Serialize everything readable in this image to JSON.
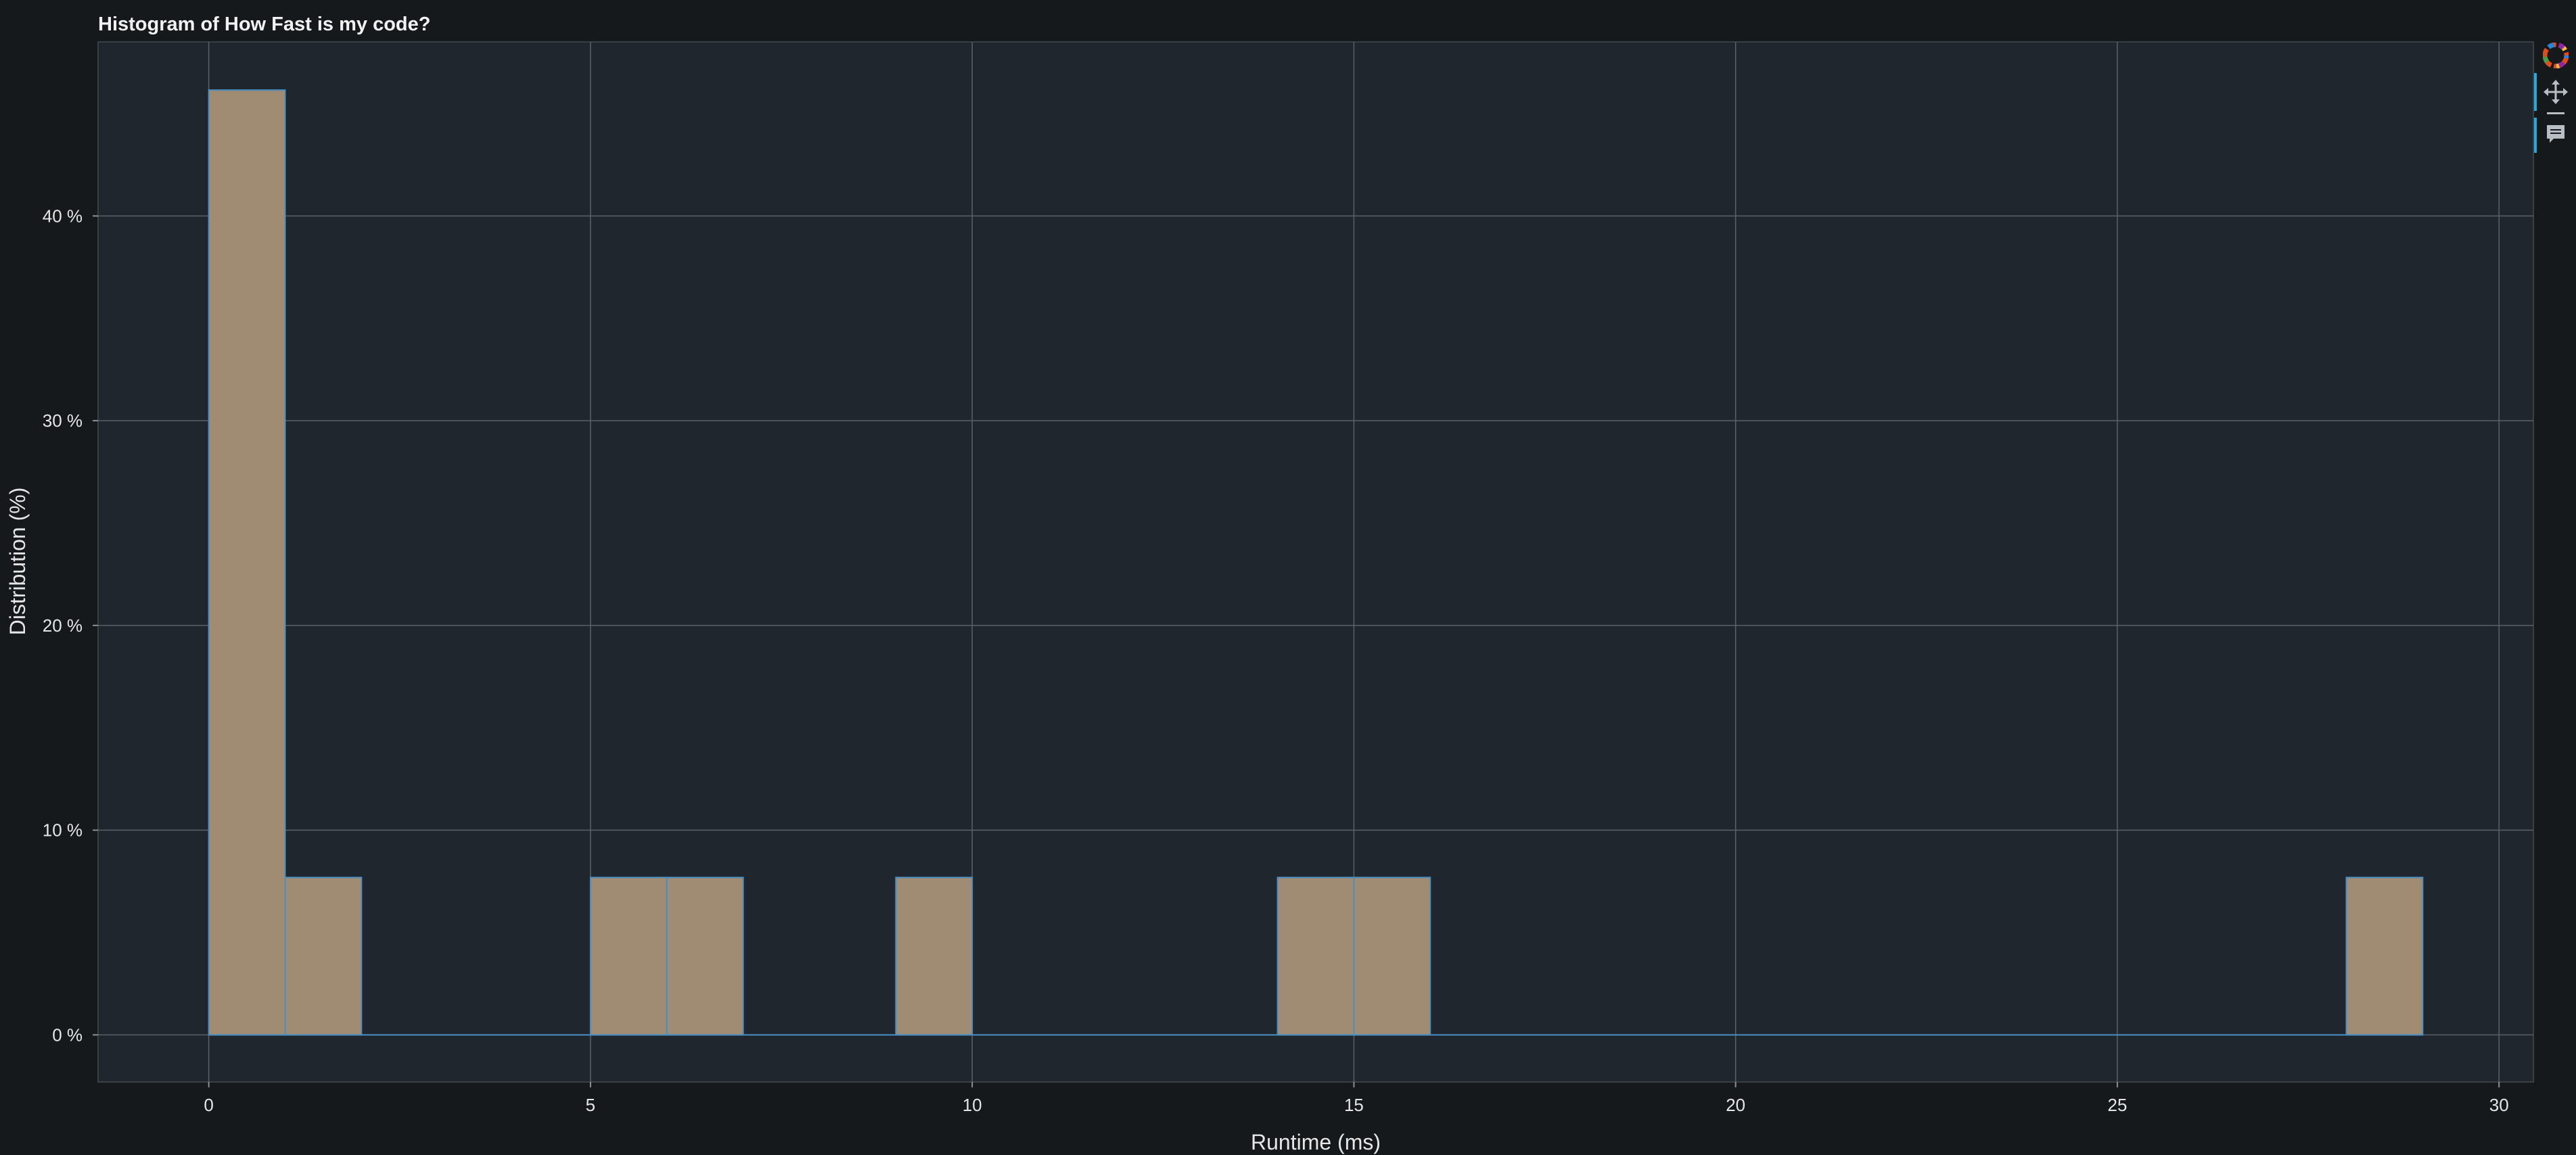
{
  "chart_data": {
    "type": "bar",
    "title": "Histogram of How Fast is my code?",
    "xlabel": "Runtime (ms)",
    "ylabel": "Distribution (%)",
    "bin_width": 1,
    "bins": [
      {
        "x0": 0,
        "x1": 1,
        "value": 46.15
      },
      {
        "x0": 1,
        "x1": 2,
        "value": 7.69
      },
      {
        "x0": 5,
        "x1": 6,
        "value": 7.69
      },
      {
        "x0": 6,
        "x1": 7,
        "value": 7.69
      },
      {
        "x0": 9,
        "x1": 10,
        "value": 7.69
      },
      {
        "x0": 14,
        "x1": 15,
        "value": 7.69
      },
      {
        "x0": 15,
        "x1": 16,
        "value": 7.69
      },
      {
        "x0": 28,
        "x1": 29,
        "value": 7.69
      }
    ],
    "baseline_range": [
      0,
      29
    ],
    "xlim": [
      -1.45,
      30.45
    ],
    "ylim": [
      -2.3,
      48.5
    ],
    "x_ticks": [
      0,
      5,
      10,
      15,
      20,
      25,
      30
    ],
    "x_tick_labels": [
      "0",
      "5",
      "10",
      "15",
      "20",
      "25",
      "30"
    ],
    "y_ticks": [
      0,
      10,
      20,
      30,
      40
    ],
    "y_tick_labels": [
      "0 %",
      "10 %",
      "20 %",
      "30 %",
      "40 %"
    ],
    "grid": true,
    "colors": {
      "page_background": "#15191c",
      "plot_background": "#20262d",
      "bar_fill": "#9f8c72",
      "bar_edge": "#4a8fc4",
      "grid": "#5a6169",
      "text": "#e6e6e6"
    }
  },
  "toolbar": {
    "tools": [
      {
        "icon": "bokeh-logo-icon",
        "active": false
      },
      {
        "icon": "pan-icon",
        "active": true
      },
      {
        "icon": "wheel-zoom-icon",
        "active": false
      },
      {
        "icon": "hover-tooltip-icon",
        "active": true
      }
    ]
  }
}
